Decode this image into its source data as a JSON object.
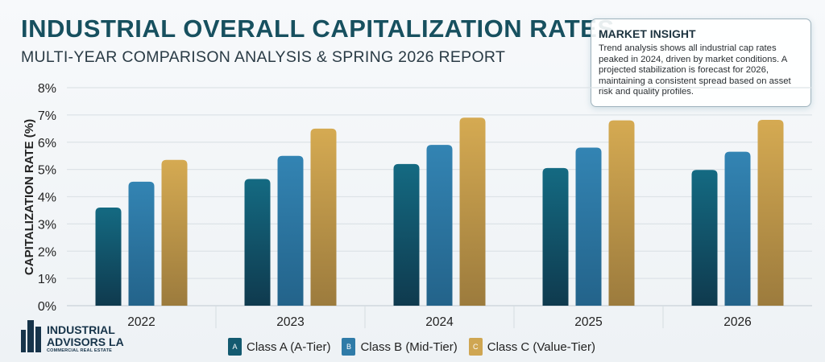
{
  "header": {
    "title": "INDUSTRIAL OVERALL CAPITALIZATION RATES",
    "subtitle": "MULTI-YEAR COMPARISON ANALYSIS & SPRING 2026 REPORT"
  },
  "insight": {
    "title": "MARKET INSIGHT",
    "body": "Trend analysis shows all industrial cap rates peaked in 2024, driven by market conditions. A projected stabilization is forecast for 2026, maintaining a consistent spread based on asset risk and quality profiles."
  },
  "logo": {
    "line1": "INDUSTRIAL",
    "line2": "ADVISORS LA",
    "line3": "COMMERCIAL REAL ESTATE"
  },
  "chart_data": {
    "type": "bar",
    "title": "INDUSTRIAL OVERALL CAPITALIZATION RATES",
    "xlabel": "",
    "ylabel": "CAPITALIZATION RATE (%)",
    "ylim": [
      0,
      8
    ],
    "yticks": [
      "0%",
      "1%",
      "2%",
      "3%",
      "4%",
      "5%",
      "6%",
      "7%",
      "8%"
    ],
    "grid": true,
    "legend_placement": "bottom",
    "categories": [
      "2022",
      "2023",
      "2024",
      "2025",
      "2026"
    ],
    "series": [
      {
        "name": "Class A (A-Tier)",
        "badge": "A",
        "color": "#135a70",
        "values": [
          3.6,
          4.65,
          5.2,
          5.05,
          4.98
        ]
      },
      {
        "name": "Class B (Mid-Tier)",
        "badge": "B",
        "color": "#2f7ba8",
        "values": [
          4.55,
          5.5,
          5.9,
          5.8,
          5.65
        ]
      },
      {
        "name": "Class C (Value-Tier)",
        "badge": "C",
        "color": "#cfa652",
        "values": [
          5.35,
          6.5,
          6.9,
          6.8,
          6.82
        ]
      }
    ]
  }
}
